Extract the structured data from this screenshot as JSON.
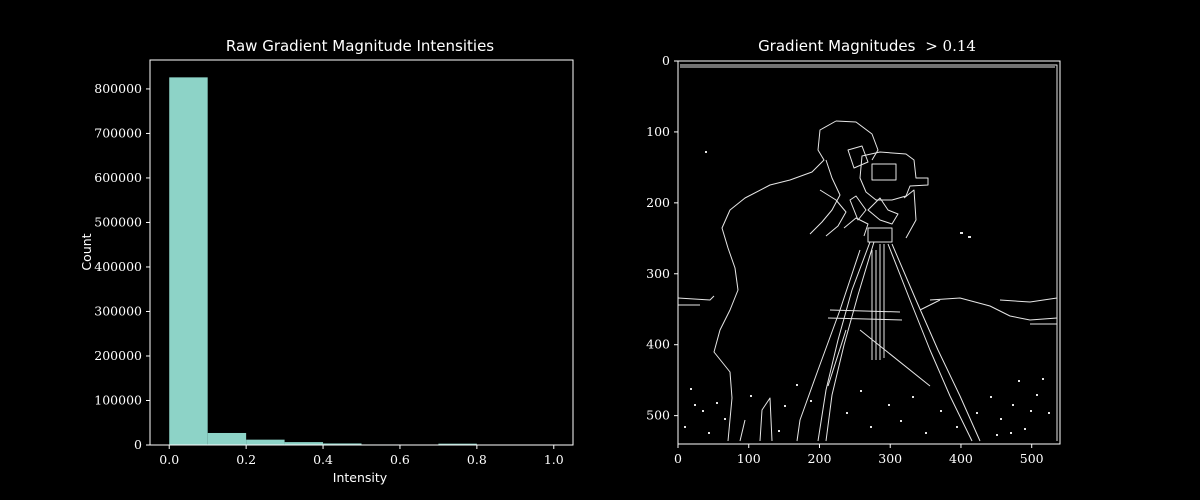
{
  "chart_data": [
    {
      "type": "bar",
      "title": "Raw Gradient Magnitude Intensities",
      "xlabel": "Intensity",
      "ylabel": "Count",
      "bin_edges": [
        0.0,
        0.1,
        0.2,
        0.3,
        0.4,
        0.5,
        0.6,
        0.7,
        0.8,
        0.9,
        1.0
      ],
      "values": [
        826000,
        27000,
        12000,
        6500,
        3500,
        1200,
        800,
        3000,
        600,
        300
      ],
      "xlim": [
        -0.05,
        1.05
      ],
      "ylim": [
        0,
        865000
      ],
      "xticks": [
        "0.0",
        "0.2",
        "0.4",
        "0.6",
        "0.8",
        "1.0"
      ],
      "yticks": [
        "0",
        "100000",
        "200000",
        "300000",
        "400000",
        "500000",
        "600000",
        "700000",
        "800000"
      ],
      "bar_color": "#8dd3c7",
      "background": "#000000",
      "grid": false
    },
    {
      "type": "heatmap",
      "title": "Gradient Magnitudes > 0.14",
      "title_prefix": "Gradient Magnitudes",
      "title_math": "> 0.14",
      "threshold": 0.14,
      "xlim": [
        0,
        540
      ],
      "ylim": [
        540,
        0
      ],
      "xticks": [
        "0",
        "100",
        "200",
        "300",
        "400",
        "500"
      ],
      "yticks": [
        "0",
        "100",
        "200",
        "300",
        "400",
        "500"
      ],
      "colormap": "gray",
      "grid": false
    }
  ]
}
